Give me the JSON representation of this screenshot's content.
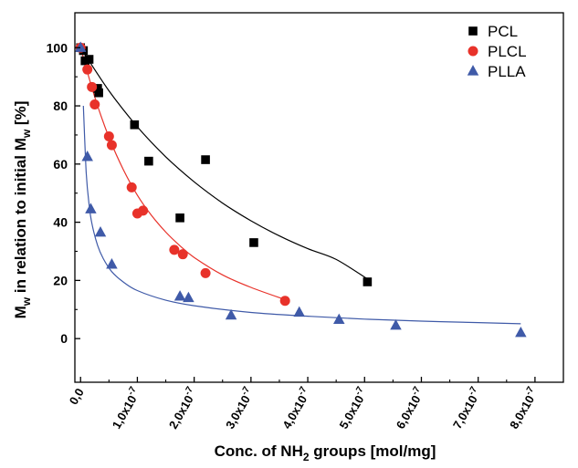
{
  "chart_data": {
    "type": "scatter",
    "title": "",
    "xlabel_parts": [
      "Conc. of NH",
      "2",
      " groups [mol/mg]"
    ],
    "ylabel_parts": [
      "M",
      "w",
      " in relation to initial M",
      "w",
      " [%]"
    ],
    "xlim": [
      -0.1,
      8.5
    ],
    "ylim": [
      -15,
      112
    ],
    "x_tick_mantissas": [
      "0,0",
      "1,0x10",
      "2,0x10",
      "3,0x10",
      "4,0x10",
      "5,0x10",
      "6,0x10",
      "7,0x10",
      "8,0x10"
    ],
    "x_tick_values": [
      0,
      1,
      2,
      3,
      4,
      5,
      6,
      7,
      8
    ],
    "x_tick_exponent": "-7",
    "x_tick_exponent_from_index": 1,
    "y_ticks": [
      0,
      20,
      40,
      60,
      80,
      100
    ],
    "x_minor_ticks": [
      0.5,
      1.5,
      2.5,
      3.5,
      4.5,
      5.5,
      6.5,
      7.5
    ],
    "y_minor_ticks": [
      10,
      30,
      50,
      70,
      90
    ],
    "x_unit_note": "x values in units of 1e-7 mol/mg",
    "legend_position": "top-right",
    "series": [
      {
        "name": "PCL",
        "marker": "square",
        "color": "#000000",
        "fit_color": "#000000",
        "points": [
          [
            0.0,
            100
          ],
          [
            0.05,
            99
          ],
          [
            0.08,
            95.5
          ],
          [
            0.15,
            96
          ],
          [
            0.3,
            86
          ],
          [
            0.32,
            84.5
          ],
          [
            0.95,
            73.5
          ],
          [
            1.2,
            61
          ],
          [
            1.75,
            41.5
          ],
          [
            2.2,
            61.5
          ],
          [
            3.05,
            33
          ],
          [
            5.05,
            19.5
          ]
        ],
        "fit": [
          [
            0.0,
            100
          ],
          [
            0.5,
            85.2
          ],
          [
            1.0,
            72.8
          ],
          [
            1.5,
            62.5
          ],
          [
            2.0,
            53.9
          ],
          [
            2.5,
            46.6
          ],
          [
            3.0,
            40.5
          ],
          [
            3.5,
            35.3
          ],
          [
            4.0,
            30.9
          ],
          [
            4.5,
            27.2
          ],
          [
            5.05,
            20.5
          ]
        ]
      },
      {
        "name": "PLCL",
        "marker": "circle",
        "color": "#e8322a",
        "fit_color": "#e8322a",
        "points": [
          [
            0.0,
            100
          ],
          [
            0.12,
            92.5
          ],
          [
            0.2,
            86.5
          ],
          [
            0.25,
            80.5
          ],
          [
            0.5,
            69.5
          ],
          [
            0.55,
            66.5
          ],
          [
            0.9,
            52
          ],
          [
            1.0,
            43
          ],
          [
            1.1,
            44
          ],
          [
            1.65,
            30.5
          ],
          [
            1.8,
            29
          ],
          [
            2.2,
            22.5
          ],
          [
            3.6,
            13
          ]
        ],
        "fit": [
          [
            0.0,
            100
          ],
          [
            0.25,
            83
          ],
          [
            0.5,
            69.2
          ],
          [
            0.75,
            58.2
          ],
          [
            1.0,
            49.3
          ],
          [
            1.25,
            42.3
          ],
          [
            1.5,
            36.6
          ],
          [
            1.75,
            31.9
          ],
          [
            2.0,
            27.9
          ],
          [
            2.5,
            21.9
          ],
          [
            3.0,
            17.6
          ],
          [
            3.6,
            13.4
          ]
        ]
      },
      {
        "name": "PLLA",
        "marker": "triangle",
        "color": "#3f5aa8",
        "fit_color": "#3f5aa8",
        "points": [
          [
            0.0,
            100
          ],
          [
            0.12,
            62.5
          ],
          [
            0.18,
            44.5
          ],
          [
            0.35,
            36.5
          ],
          [
            0.55,
            25.5
          ],
          [
            1.75,
            14.5
          ],
          [
            1.9,
            14
          ],
          [
            2.65,
            8
          ],
          [
            3.85,
            9
          ],
          [
            4.55,
            6.5
          ],
          [
            5.55,
            4.5
          ],
          [
            7.75,
            2
          ]
        ],
        "fit": [
          [
            0.05,
            80
          ],
          [
            0.1,
            57
          ],
          [
            0.15,
            46
          ],
          [
            0.2,
            39.5
          ],
          [
            0.3,
            32
          ],
          [
            0.4,
            27.5
          ],
          [
            0.55,
            23
          ],
          [
            0.75,
            19.5
          ],
          [
            1.0,
            16.5
          ],
          [
            1.5,
            13.2
          ],
          [
            2.0,
            11.3
          ],
          [
            3.0,
            9
          ],
          [
            4.0,
            7.7
          ],
          [
            5.0,
            6.7
          ],
          [
            6.0,
            6.0
          ],
          [
            7.0,
            5.5
          ],
          [
            7.75,
            5.1
          ]
        ]
      }
    ]
  }
}
